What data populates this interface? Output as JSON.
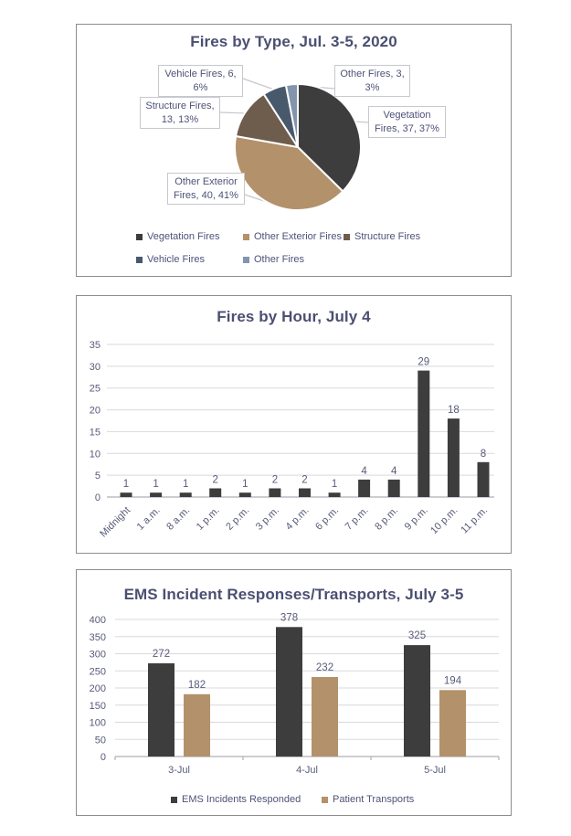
{
  "colors": {
    "title_text": "#4b4f72",
    "label_text": "#575b78",
    "gridline": "#d9d9de",
    "axis_line": "#b0b0b8",
    "panel_border": "#8d8d8d",
    "callout_border": "#c7c7ce",
    "dark_series": "#3d3d3d",
    "tan_series": "#b3916b",
    "brown_series": "#6e5c4d",
    "slate_series": "#48596c",
    "light_slate_series": "#8295ac"
  },
  "chart_data": [
    {
      "type": "pie",
      "title": "Fires by Type, Jul. 3-5, 2020",
      "start_angle_deg": 0,
      "direction": "clockwise",
      "legend_position": "bottom",
      "slices": [
        {
          "label": "Vegetation Fires",
          "value": 37,
          "pct": "37%",
          "color": "#3d3d3d",
          "callout": "Vegetation\nFires, 37, 37%"
        },
        {
          "label": "Other Exterior Fires",
          "value": 40,
          "pct": "41%",
          "color": "#b3916b",
          "callout": "Other Exterior\nFires, 40, 41%"
        },
        {
          "label": "Structure Fires",
          "value": 13,
          "pct": "13%",
          "color": "#6e5c4d",
          "callout": "Structure Fires,\n13, 13%"
        },
        {
          "label": "Vehicle Fires",
          "value": 6,
          "pct": "6%",
          "color": "#48596c",
          "callout": "Vehicle Fires, 6,\n6%"
        },
        {
          "label": "Other Fires",
          "value": 3,
          "pct": "3%",
          "color": "#8295ac",
          "callout": "Other Fires, 3,\n3%"
        }
      ]
    },
    {
      "type": "bar",
      "title": "Fires by Hour, July 4",
      "categories": [
        "Midnight",
        "1 a.m.",
        "8 a.m.",
        "1 p.m.",
        "2 p.m.",
        "3 p.m.",
        "4 p.m.",
        "6 p.m.",
        "7 p.m.",
        "8 p.m.",
        "9 p.m.",
        "10 p.m.",
        "11 p.m."
      ],
      "values": [
        1,
        1,
        1,
        2,
        1,
        2,
        2,
        1,
        4,
        4,
        29,
        18,
        8
      ],
      "xlabel": "",
      "ylabel": "",
      "ylim": [
        0,
        35
      ],
      "ytick_step": 5,
      "bar_color": "#3d3d3d",
      "grid": "horizontal",
      "data_labels": true
    },
    {
      "type": "bar",
      "title": "EMS Incident Responses/Transports, July 3-5",
      "categories": [
        "3-Jul",
        "4-Jul",
        "5-Jul"
      ],
      "series": [
        {
          "name": "EMS Incidents Responded",
          "color": "#3d3d3d",
          "values": [
            272,
            378,
            325
          ]
        },
        {
          "name": "Patient Transports",
          "color": "#b3916b",
          "values": [
            182,
            232,
            194
          ]
        }
      ],
      "xlabel": "",
      "ylabel": "",
      "ylim": [
        0,
        400
      ],
      "ytick_step": 50,
      "grid": "horizontal",
      "legend_position": "bottom",
      "data_labels": true
    }
  ]
}
